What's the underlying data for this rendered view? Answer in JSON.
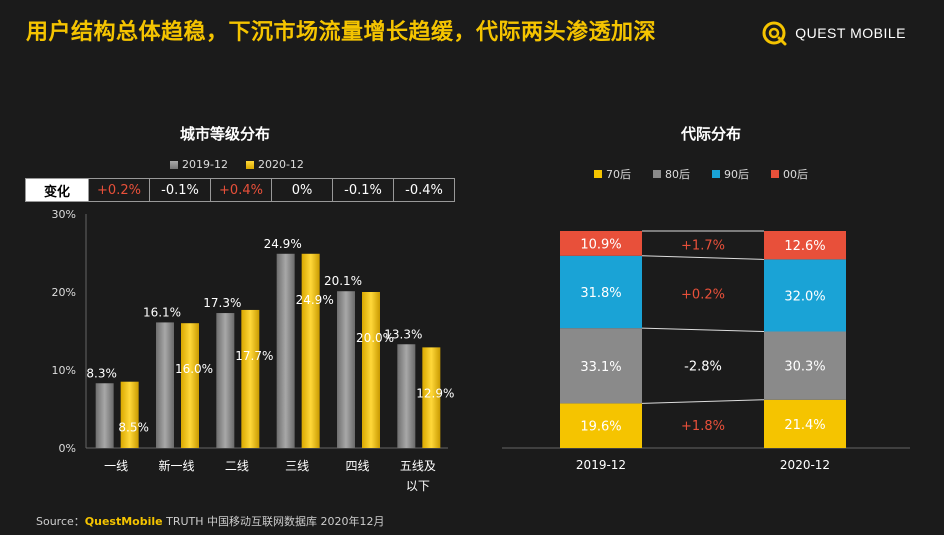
{
  "header": {
    "title": "用户结构总体趋稳，下沉市场流量增长趋缓，代际两头渗透加深",
    "logo_text": "QUEST MOBILE"
  },
  "left_panel": {
    "title": "城市等级分布",
    "legend": [
      "2019-12",
      "2020-12"
    ],
    "change_label": "变化",
    "changes": [
      "+0.2%",
      "-0.1%",
      "+0.4%",
      "0%",
      "-0.1%",
      "-0.4%"
    ],
    "positive_color": "#e8503a"
  },
  "right_panel": {
    "title": "代际分布",
    "legend": [
      "70后",
      "80后",
      "90后",
      "00后"
    ],
    "changes": [
      "+1.7%",
      "+0.2%",
      "-2.8%",
      "+1.8%"
    ]
  },
  "source": {
    "prefix": "Source：",
    "brand": "QuestMobile",
    "rest": " TRUTH 中国移动互联网数据库 2020年12月"
  },
  "chart_data": [
    {
      "type": "bar",
      "title": "城市等级分布",
      "categories": [
        "一线",
        "新一线",
        "二线",
        "三线",
        "四线",
        "五线及以下"
      ],
      "category_lines": [
        [
          "一线"
        ],
        [
          "新一线"
        ],
        [
          "二线"
        ],
        [
          "三线"
        ],
        [
          "四线"
        ],
        [
          "五线及",
          "以下"
        ]
      ],
      "series": [
        {
          "name": "2019-12",
          "values": [
            8.3,
            16.1,
            17.3,
            24.9,
            20.1,
            13.3
          ],
          "color": "#8a8a8a"
        },
        {
          "name": "2020-12",
          "values": [
            8.5,
            16.0,
            17.7,
            24.9,
            20.0,
            12.9
          ],
          "color": "#f5c400"
        }
      ],
      "yticks": [
        "0%",
        "10%",
        "20%",
        "30%"
      ],
      "ylim": [
        0,
        30
      ],
      "unit": "%"
    },
    {
      "type": "bar",
      "stacked": true,
      "title": "代际分布",
      "categories": [
        "2019-12",
        "2020-12"
      ],
      "series": [
        {
          "name": "70后",
          "values": [
            19.6,
            21.4
          ],
          "color": "#f5c400"
        },
        {
          "name": "80后",
          "values": [
            33.1,
            30.3
          ],
          "color": "#8a8a8a"
        },
        {
          "name": "90后",
          "values": [
            31.8,
            32.0
          ],
          "color": "#1aa3d6"
        },
        {
          "name": "00后",
          "values": [
            10.9,
            12.6
          ],
          "color": "#e8503a"
        }
      ],
      "changes": [
        "+1.8%",
        "-2.8%",
        "+0.2%",
        "+1.7%"
      ],
      "unit": "%"
    }
  ]
}
